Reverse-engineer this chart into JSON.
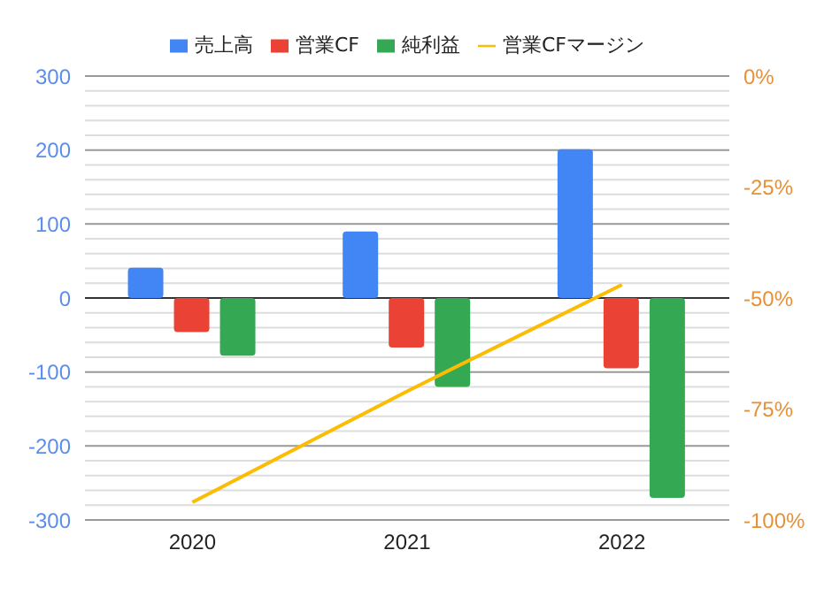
{
  "chart_data": {
    "type": "bar",
    "categories": [
      "2020",
      "2021",
      "2022"
    ],
    "series": [
      {
        "name": "売上高",
        "color": "#4285f4",
        "values": [
          41,
          90,
          201
        ]
      },
      {
        "name": "営業CF",
        "color": "#ea4335",
        "values": [
          -46,
          -67,
          -95
        ]
      },
      {
        "name": "純利益",
        "color": "#34a853",
        "values": [
          -78,
          -120,
          -270
        ]
      },
      {
        "name": "営業CFマージン",
        "type": "line",
        "axis": "y2",
        "color": "#fbbc04",
        "values": [
          -96,
          -71,
          -47
        ]
      }
    ],
    "ylim": [
      -300,
      300
    ],
    "yticks": [
      -300,
      {
        "value": -280,
        "label": null
      },
      {
        "value": -260,
        "label": null
      },
      {
        "value": -240,
        "label": null
      },
      {
        "value": -220,
        "label": null
      },
      -200,
      {
        "value": -180,
        "label": null
      },
      {
        "value": -160,
        "label": null
      },
      {
        "value": -140,
        "label": null
      },
      {
        "value": -120,
        "label": null
      },
      -100,
      {
        "value": -80,
        "label": null
      },
      {
        "value": -60,
        "label": null
      },
      {
        "value": -40,
        "label": null
      },
      {
        "value": -20,
        "label": null
      },
      0,
      {
        "value": 20,
        "label": null
      },
      {
        "value": 40,
        "label": null
      },
      {
        "value": 60,
        "label": null
      },
      {
        "value": 80,
        "label": null
      },
      100,
      {
        "value": 120,
        "label": null
      },
      {
        "value": 140,
        "label": null
      },
      {
        "value": 160,
        "label": null
      },
      {
        "value": 180,
        "label": null
      },
      200,
      {
        "value": 220,
        "label": null
      },
      {
        "value": 240,
        "label": null
      },
      {
        "value": 260,
        "label": null
      },
      {
        "value": 280,
        "label": null
      },
      300
    ],
    "y2lim": [
      -100,
      0
    ],
    "y2ticks": [
      {
        "value": -100,
        "label": "-100%"
      },
      {
        "value": -75,
        "label": "-75%"
      },
      {
        "value": -50,
        "label": "-50%"
      },
      {
        "value": -25,
        "label": "-25%"
      },
      {
        "value": 0,
        "label": "0%"
      }
    ],
    "grid": "y",
    "legend": "top"
  }
}
